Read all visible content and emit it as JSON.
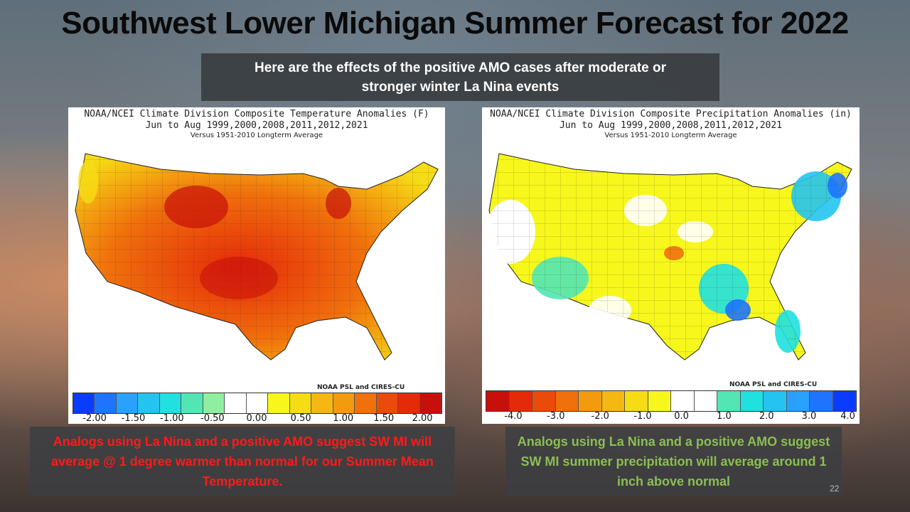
{
  "title": "Southwest Lower Michigan Summer Forecast for 2022",
  "banner": "Here are the effects of the positive AMO cases after moderate or stronger winter La Nina events",
  "temp_map": {
    "line1": "NOAA/NCEI Climate Division Composite Temperature Anomalies (F)",
    "line2": "Jun to Aug  1999,2000,2008,2011,2012,2021",
    "line3": "Versus 1951-2010 Longterm Average",
    "credit": "NOAA PSL and CIRES-CU",
    "ticks": [
      "-2.00",
      "-1.50",
      "-1.00",
      "-0.50",
      "0.00",
      "0.50",
      "1.00",
      "1.50",
      "2.00"
    ],
    "colors": [
      "#0a3cff",
      "#1e73ff",
      "#2aa0ff",
      "#23c4f0",
      "#20e0e0",
      "#52e6b4",
      "#90eea0",
      "#ffffff",
      "#ffffff",
      "#f7f71c",
      "#f6dc15",
      "#f5b812",
      "#f39b0f",
      "#f0700c",
      "#ea4a0a",
      "#e52a0a",
      "#c8100a"
    ]
  },
  "precip_map": {
    "line1": "NOAA/NCEI Climate Division Composite Precipitation Anomalies (in)",
    "line2": "Jun to Aug  1999,2000,2008,2011,2012,2021",
    "line3": "Versus 1951-2010 Longterm Average",
    "credit": "NOAA PSL and CIRES-CU",
    "ticks": [
      "-4.0",
      "-3.0",
      "-2.0",
      "-1.0",
      "0.0",
      "1.0",
      "2.0",
      "3.0",
      "4.0"
    ],
    "colors": [
      "#c8100a",
      "#e52a0a",
      "#ea4a0a",
      "#f0700c",
      "#f39b0f",
      "#f5b812",
      "#f6dc15",
      "#f7f71c",
      "#ffffff",
      "#ffffff",
      "#52e6b4",
      "#20e0e0",
      "#23c4f0",
      "#2aa0ff",
      "#1e73ff",
      "#0a3cff"
    ]
  },
  "caption_left": "Analogs using La Nina and a positive AMO suggest SW MI will average @ 1 degree warmer than normal for our Summer Mean Temperature.",
  "caption_right": "Analogs using La Nina and a positive AMO suggest SW MI summer  precipitation will average around 1 inch above normal",
  "page_number": "22"
}
